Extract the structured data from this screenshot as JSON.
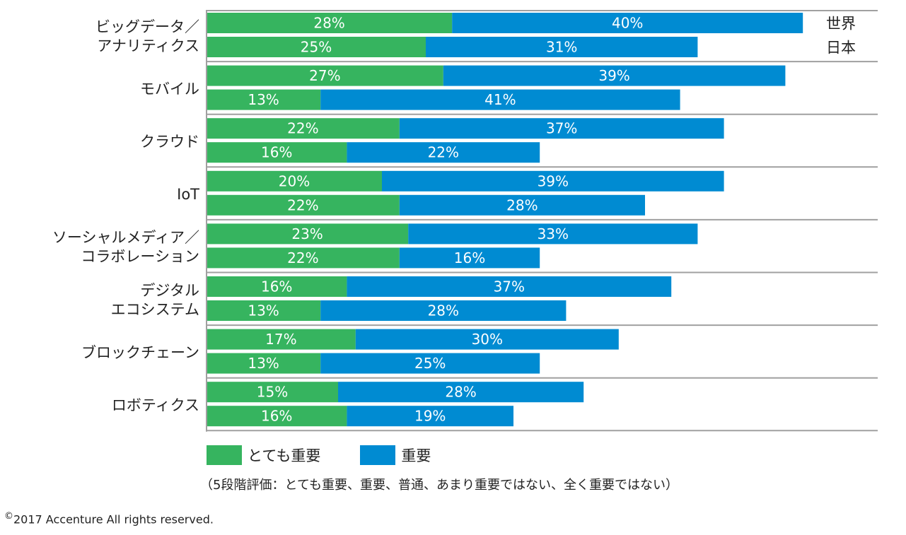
{
  "chart_data": {
    "type": "bar",
    "orientation": "horizontal",
    "stacked": true,
    "title": "",
    "xlabel": "",
    "ylabel": "",
    "xlim": [
      0,
      76
    ],
    "grid": false,
    "row_labels": [
      "世界",
      "日本"
    ],
    "categories": [
      "ビッグデータ／\nアナリティクス",
      "モバイル",
      "クラウド",
      "IoT",
      "ソーシャルメディア／\nコラボレーション",
      "デジタル\nエコシステム",
      "ブロックチェーン",
      "ロボティクス"
    ],
    "series": [
      {
        "name": "とても重要",
        "color": "#36b45f",
        "world": [
          28,
          27,
          22,
          20,
          23,
          16,
          17,
          15
        ],
        "japan": [
          25,
          13,
          16,
          22,
          22,
          13,
          13,
          16
        ]
      },
      {
        "name": "重要",
        "color": "#008bd2",
        "world": [
          40,
          39,
          37,
          39,
          33,
          37,
          30,
          28
        ],
        "japan": [
          31,
          41,
          22,
          28,
          16,
          28,
          25,
          19
        ]
      }
    ],
    "value_suffix": "%",
    "legend_position": "bottom-left"
  },
  "legend": {
    "items": [
      {
        "label": "とても重要",
        "color": "#36b45f"
      },
      {
        "label": "重要",
        "color": "#008bd2"
      }
    ]
  },
  "note": "（5段階評価：とても重要、重要、普通、あまり重要ではない、全く重要ではない）",
  "copyright": {
    "symbol": "©",
    "text": "2017 Accenture All rights reserved."
  }
}
